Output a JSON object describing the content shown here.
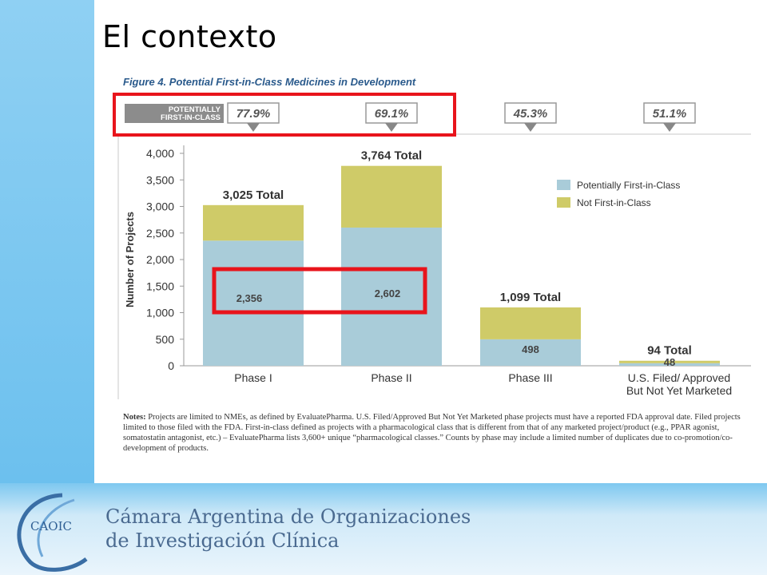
{
  "slide": {
    "title": "El contexto",
    "figure_title": "Figure 4. Potential First-in-Class Medicines in Development",
    "notes_label": "Notes:",
    "notes_text": "Projects are limited to NMEs, as defined by EvaluatePharma. U.S. Filed/Approved But Not Yet Marketed phase projects must have a reported FDA approval date. Filed projects limited to those filed with the FDA. First-in-class defined as projects with a pharmacological class that is different from that of any marketed project/product (e.g., PPAR agonist, somatostatin antagonist, etc.) – EvaluatePharma lists 3,600+ unique “pharmacological classes.” Counts by phase may include a limited number of duplicates due to co-promotion/co-development of products."
  },
  "org": {
    "line1": "Cámara Argentina de Organizaciones",
    "line2": "de Investigación Clínica",
    "logo_text": "CAOIC"
  },
  "colors": {
    "first_in_class": "#a9ccd9",
    "not_first_in_class": "#cfcb68",
    "highlight": "#e8141c",
    "callout_label_bg": "#8c8c8c"
  },
  "chart_data": {
    "type": "bar",
    "stacked": true,
    "categories": [
      "Phase I",
      "Phase II",
      "Phase III",
      "U.S. Filed/ Approved\nBut Not Yet Marketed"
    ],
    "series": [
      {
        "name": "Potentially First-in-Class",
        "values": [
          2356,
          2602,
          498,
          48
        ]
      },
      {
        "name": "Not First-in-Class",
        "values": [
          669,
          1162,
          601,
          46
        ]
      }
    ],
    "totals": [
      3025,
      3764,
      1099,
      94
    ],
    "total_labels": [
      "3,025 Total",
      "3,764 Total",
      "1,099 Total",
      "94 Total"
    ],
    "segment_labels": [
      "2,356",
      "2,602",
      "498",
      "48"
    ],
    "percent_labels": [
      "77.9%",
      "69.1%",
      "45.3%",
      "51.1%"
    ],
    "callout_label": "POTENTIALLY\nFIRST-IN-CLASS",
    "ylabel": "Number of Projects",
    "ylim": [
      0,
      4000
    ],
    "yticks": [
      0,
      500,
      1000,
      1500,
      2000,
      2500,
      3000,
      3500,
      4000
    ],
    "ytick_labels": [
      "0",
      "500",
      "1,000",
      "1,500",
      "2,000",
      "2,500",
      "3,000",
      "3,500",
      "4,000"
    ],
    "legend_position": "right"
  }
}
